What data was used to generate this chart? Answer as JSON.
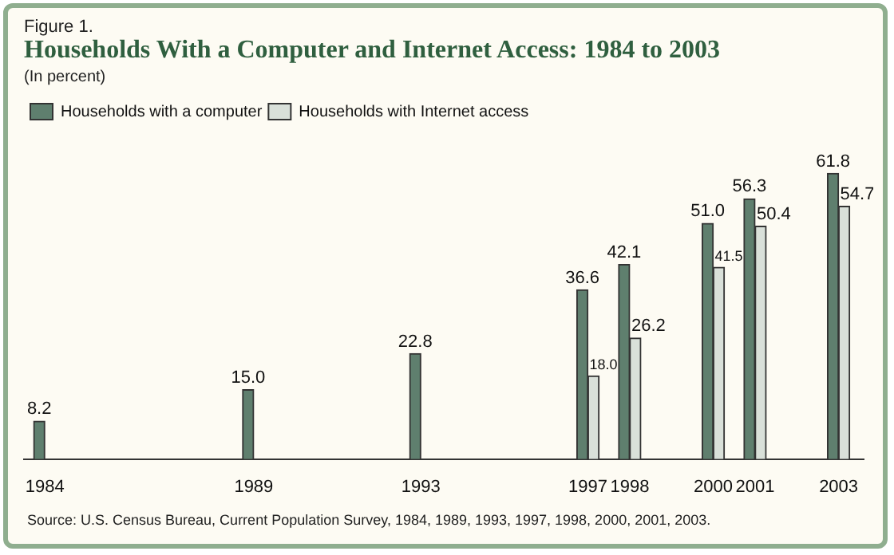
{
  "chart_data": {
    "type": "bar",
    "title": "Households With a Computer and Internet Access: 1984 to 2003",
    "subtitle": "(In percent)",
    "annotations": [
      "Figure 1.",
      "Source: U.S. Census Bureau, Current Population Survey, 1984, 1989, 1993, 1997, 1998, 2000, 2001, 2003."
    ],
    "x": [
      1984,
      1989,
      1993,
      1997,
      1998,
      2000,
      2001,
      2003
    ],
    "series": [
      {
        "name": "Households with a computer",
        "color": "#5f7f6e",
        "values": [
          8.2,
          15.0,
          22.8,
          36.6,
          42.1,
          51.0,
          56.3,
          61.8
        ],
        "value_labels": [
          "8.2",
          "15.0",
          "22.8",
          "36.6",
          "42.1",
          "51.0",
          "56.3",
          "61.8"
        ]
      },
      {
        "name": "Households with Internet access",
        "color": "#d9e0d9",
        "values": [
          null,
          null,
          null,
          18.0,
          26.2,
          41.5,
          50.4,
          54.7
        ],
        "value_labels": [
          null,
          null,
          null,
          "18.0",
          "26.2",
          "41.5",
          "50.4",
          "54.7"
        ]
      }
    ],
    "xlim": [
      1983.5,
      2003.6
    ],
    "xticks": [
      1984,
      1989,
      1993,
      1997,
      1998,
      2000,
      2001,
      2003
    ],
    "legend": "top left",
    "grid": false
  }
}
